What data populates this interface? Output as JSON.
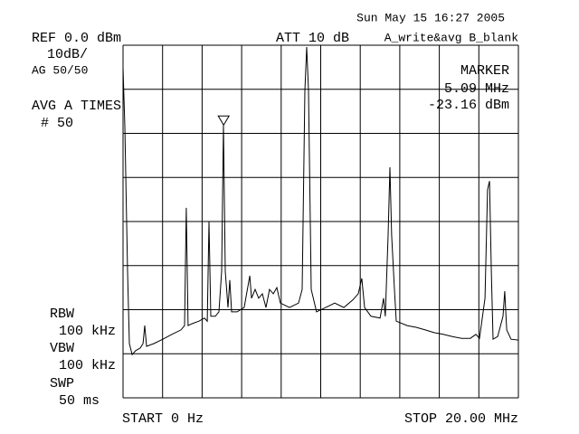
{
  "chart_data": {
    "type": "line",
    "date": "Sun May 15 16:27 2005",
    "ref": "REF 0.0 dBm",
    "att": "ATT 10 dB",
    "trace_mode": "A_write&avg B_blank",
    "scale": "10dB/",
    "ag": "AG 50/50",
    "avg": "AVG A TIMES",
    "avg_count": "# 50",
    "marker": {
      "title": "MARKER",
      "x": 5.09,
      "x_label": "5.09 MHz",
      "y": -23.16,
      "y_label": "-23.16 dBm"
    },
    "rbw_label": "RBW",
    "rbw": "100 kHz",
    "vbw_label": "VBW",
    "vbw": "100 kHz",
    "swp_label": "SWP",
    "swp": "50 ms",
    "start": "START 0 Hz",
    "stop": "STOP 20.00 MHz",
    "xlim": [
      0,
      20
    ],
    "ylim": [
      -80,
      0
    ],
    "xticks": [
      0,
      2,
      4,
      6,
      8,
      10,
      12,
      14,
      16,
      18,
      20
    ],
    "yticks": [
      0,
      -10,
      -20,
      -30,
      -40,
      -50,
      -60,
      -70,
      -80
    ],
    "grid": true,
    "color": "#000000",
    "x": [
      0.0,
      0.09,
      0.23,
      0.32,
      0.46,
      0.64,
      0.87,
      1.01,
      1.1,
      1.19,
      1.56,
      2.01,
      2.47,
      2.93,
      3.11,
      3.2,
      3.29,
      3.48,
      3.84,
      4.12,
      4.26,
      4.35,
      4.44,
      4.67,
      4.85,
      4.99,
      5.08,
      5.17,
      5.31,
      5.4,
      5.49,
      5.77,
      6.13,
      6.41,
      6.5,
      6.68,
      6.86,
      7.05,
      7.23,
      7.41,
      7.6,
      7.78,
      7.96,
      8.42,
      8.88,
      9.06,
      9.2,
      9.29,
      9.38,
      9.52,
      9.79,
      10.25,
      10.71,
      11.17,
      11.62,
      11.9,
      12.08,
      12.22,
      12.54,
      13.0,
      13.18,
      13.27,
      13.41,
      13.5,
      13.59,
      13.73,
      13.82,
      14.37,
      14.83,
      15.29,
      15.74,
      16.2,
      16.66,
      17.12,
      17.57,
      17.85,
      18.03,
      18.31,
      18.44,
      18.54,
      18.63,
      18.72,
      18.95,
      19.22,
      19.31,
      19.41,
      19.63,
      20.0
    ],
    "values": [
      -5.1,
      -18.5,
      -51.3,
      -67.7,
      -70.2,
      -69.3,
      -68.7,
      -67.7,
      -63.6,
      -68.3,
      -67.7,
      -66.7,
      -65.6,
      -64.6,
      -63.6,
      -36.9,
      -63.6,
      -63.2,
      -62.6,
      -61.9,
      -62.6,
      -40.0,
      -61.5,
      -61.5,
      -60.5,
      -51.3,
      -18.1,
      -51.3,
      -59.5,
      -53.3,
      -60.5,
      -60.5,
      -59.5,
      -52.3,
      -57.4,
      -55.4,
      -57.4,
      -56.4,
      -59.5,
      -55.4,
      -56.4,
      -55.0,
      -58.5,
      -59.5,
      -58.5,
      -55.4,
      -10.3,
      -0.4,
      -10.3,
      -55.4,
      -60.5,
      -59.5,
      -58.5,
      -59.5,
      -57.8,
      -56.4,
      -52.9,
      -59.5,
      -61.5,
      -61.9,
      -57.4,
      -61.5,
      -43.1,
      -27.7,
      -43.1,
      -55.4,
      -62.6,
      -63.6,
      -64.0,
      -64.6,
      -65.2,
      -65.6,
      -66.1,
      -66.5,
      -66.5,
      -65.6,
      -66.5,
      -57.4,
      -32.8,
      -30.8,
      -51.3,
      -66.7,
      -66.1,
      -61.5,
      -55.8,
      -64.6,
      -66.7,
      -66.9
    ]
  }
}
